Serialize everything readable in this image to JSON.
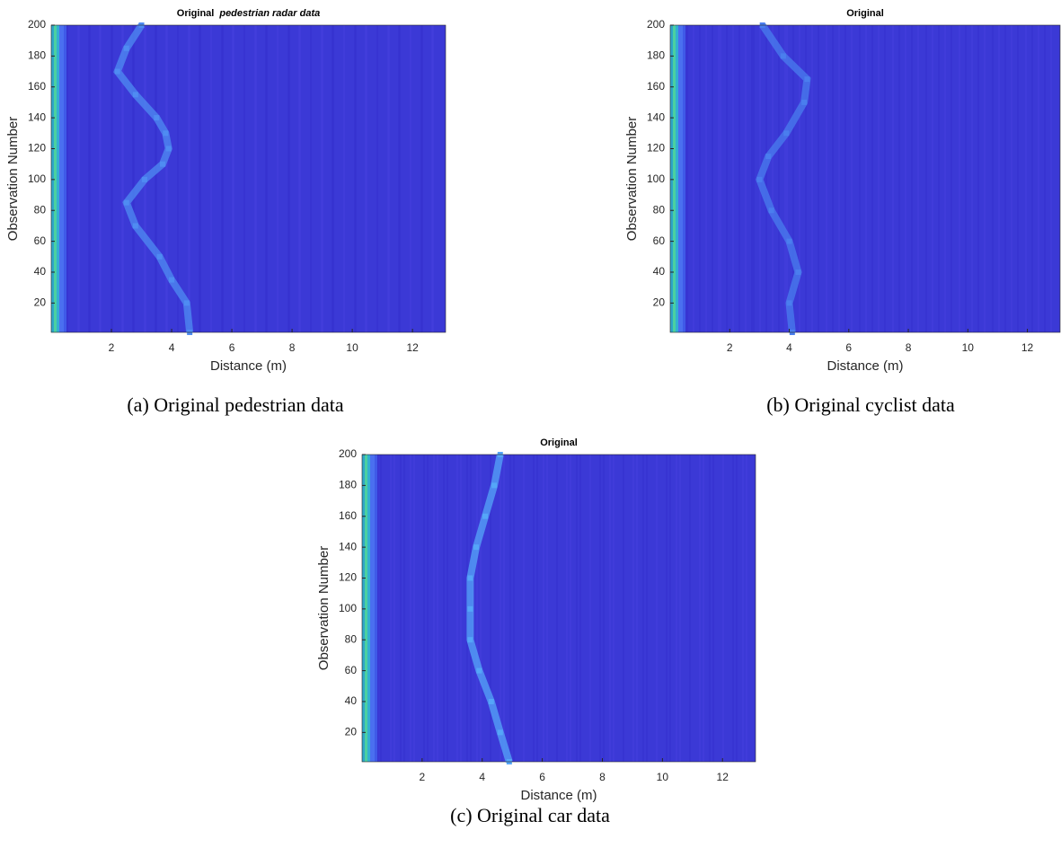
{
  "chart_data": [
    {
      "type": "heatmap",
      "title": "Original",
      "title_italic": "pedestrian radar data",
      "xlabel": "Distance (m)",
      "ylabel": "Observation Number",
      "caption": "(a) Original pedestrian data",
      "xlim": [
        0,
        13.1
      ],
      "ylim": [
        1,
        200
      ],
      "xticks": [
        2,
        4,
        6,
        8,
        10,
        12
      ],
      "yticks": [
        20,
        40,
        60,
        80,
        100,
        120,
        140,
        160,
        180,
        200
      ],
      "color": "#3b39d6",
      "ridge_color": "#4f8cf2",
      "x": [
        4.6,
        4.5,
        4.0,
        3.6,
        2.8,
        2.5,
        3.1,
        3.7,
        3.9,
        3.8,
        3.5,
        2.8,
        2.2,
        2.5,
        3.0
      ],
      "y": [
        1,
        20,
        35,
        50,
        70,
        85,
        100,
        110,
        120,
        130,
        140,
        155,
        170,
        185,
        200
      ]
    },
    {
      "type": "heatmap",
      "title": "Original",
      "xlabel": "Distance (m)",
      "ylabel": "Observation Number",
      "caption": "(b) Original cyclist data",
      "xlim": [
        0,
        13.1
      ],
      "ylim": [
        1,
        200
      ],
      "xticks": [
        2,
        4,
        6,
        8,
        10,
        12
      ],
      "yticks": [
        20,
        40,
        60,
        80,
        100,
        120,
        140,
        160,
        180,
        200
      ],
      "color": "#3b39d6",
      "ridge_color": "#4a7eee",
      "x": [
        4.1,
        4.0,
        4.3,
        4.0,
        3.4,
        3.0,
        3.3,
        3.9,
        4.5,
        4.6,
        3.8,
        3.1
      ],
      "y": [
        1,
        20,
        40,
        60,
        80,
        100,
        115,
        130,
        150,
        165,
        180,
        200
      ]
    },
    {
      "type": "heatmap",
      "title": "Original",
      "xlabel": "Distance (m)",
      "ylabel": "Observation Number",
      "caption": "(c) Original car data",
      "xlim": [
        0,
        13.1
      ],
      "ylim": [
        1,
        200
      ],
      "xticks": [
        2,
        4,
        6,
        8,
        10,
        12
      ],
      "yticks": [
        20,
        40,
        60,
        80,
        100,
        120,
        140,
        160,
        180,
        200
      ],
      "color": "#3b39d6",
      "ridge_color": "#55a6f8",
      "x": [
        4.9,
        4.6,
        4.3,
        3.9,
        3.6,
        3.6,
        3.6,
        3.8,
        4.1,
        4.4,
        4.6
      ],
      "y": [
        1,
        20,
        40,
        60,
        80,
        100,
        120,
        140,
        160,
        180,
        200
      ]
    }
  ]
}
